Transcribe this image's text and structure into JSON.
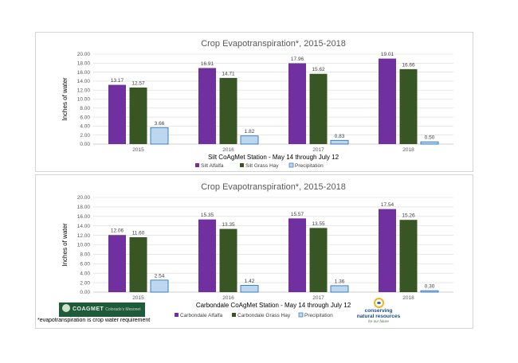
{
  "chart_data": [
    {
      "type": "bar",
      "title": "Crop Evapotranspiration*, 2015-2018",
      "subtitle": "Silt CoAgMet Station - May 14 through July 12",
      "ylabel": "Inches of water",
      "xlabel": "",
      "ylim": [
        0,
        20
      ],
      "yticks": [
        "0.00",
        "2.00",
        "4.00",
        "6.00",
        "8.00",
        "10.00",
        "12.00",
        "14.00",
        "16.00",
        "18.00",
        "20.00"
      ],
      "grid": true,
      "legend_position": "bottom",
      "categories": [
        "2015",
        "2016",
        "2017",
        "2018"
      ],
      "series": [
        {
          "name": "Silt Alfalfa",
          "color": "#7030a0",
          "values": [
            13.17,
            16.91,
            17.96,
            19.01
          ],
          "labels": [
            "13.17",
            "16.91",
            "17.96",
            "19.01"
          ]
        },
        {
          "name": "Silt Grass Hay",
          "color": "#375623",
          "values": [
            12.57,
            14.71,
            15.62,
            16.66
          ],
          "labels": [
            "12.57",
            "14.71",
            "15.62",
            "16.66"
          ]
        },
        {
          "name": "Precipitation",
          "color": "#bdd7ee",
          "values": [
            3.66,
            1.82,
            0.83,
            0.5
          ],
          "labels": [
            "3.66",
            "1.82",
            "0.83",
            "0.50"
          ]
        }
      ]
    },
    {
      "type": "bar",
      "title": "Crop Evapotranspiration*, 2015-2018",
      "subtitle": "Carbondale CoAgMet Station - May 14 through July 12",
      "ylabel": "Inches of water",
      "xlabel": "",
      "ylim": [
        0,
        20
      ],
      "yticks": [
        "0.00",
        "2.00",
        "4.00",
        "6.00",
        "8.00",
        "10.00",
        "12.00",
        "14.00",
        "16.00",
        "18.00",
        "20.00"
      ],
      "grid": true,
      "legend_position": "bottom",
      "categories": [
        "2015",
        "2016",
        "2017",
        "2018"
      ],
      "series": [
        {
          "name": "Carbondale Alfalfa",
          "color": "#7030a0",
          "values": [
            12.06,
            15.35,
            15.57,
            17.54
          ],
          "labels": [
            "12.06",
            "15.35",
            "15.57",
            "17.54"
          ]
        },
        {
          "name": "Carbondale Grass Hay",
          "color": "#375623",
          "values": [
            11.6,
            13.35,
            13.55,
            15.26
          ],
          "labels": [
            "11.60",
            "13.35",
            "13.55",
            "15.26"
          ]
        },
        {
          "name": "Precipitation",
          "color": "#bdd7ee",
          "values": [
            2.54,
            1.42,
            1.36,
            0.3
          ],
          "labels": [
            "2.54",
            "1.42",
            "1.36",
            "0.30"
          ]
        }
      ]
    }
  ],
  "footnote": "*evapotranspiration is crop water requirement",
  "logos": {
    "coagmet": {
      "brand": "COAGMET",
      "sub": "Colorado's Mesonet"
    },
    "cnr": {
      "line1": "conserving",
      "line2": "natural resources",
      "tag": "for our future"
    }
  },
  "colors": {
    "axis": "#bfbfbf",
    "grid": "#d9d9d9",
    "bar_outline": "#2e75b6"
  }
}
